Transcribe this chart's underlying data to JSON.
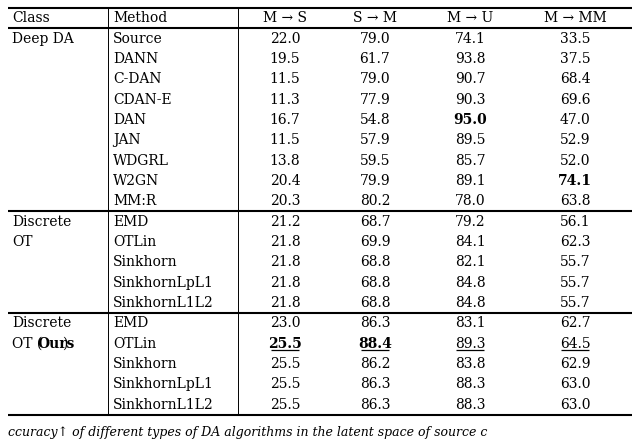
{
  "headers": [
    "Class",
    "Method",
    "M → S",
    "S → M",
    "M → U",
    "M → MM"
  ],
  "sections": [
    {
      "class_label_lines": [
        "Deep DA"
      ],
      "class_bold": [
        false
      ],
      "rows": [
        {
          "method": "Source",
          "vals": [
            "22.0",
            "79.0",
            "74.1",
            "33.5"
          ],
          "bold": [
            false,
            false,
            false,
            false
          ],
          "underline": [
            false,
            false,
            false,
            false
          ]
        },
        {
          "method": "DANN",
          "vals": [
            "19.5",
            "61.7",
            "93.8",
            "37.5"
          ],
          "bold": [
            false,
            false,
            false,
            false
          ],
          "underline": [
            false,
            false,
            false,
            false
          ]
        },
        {
          "method": "C-DAN",
          "vals": [
            "11.5",
            "79.0",
            "90.7",
            "68.4"
          ],
          "bold": [
            false,
            false,
            false,
            false
          ],
          "underline": [
            false,
            false,
            false,
            false
          ]
        },
        {
          "method": "CDAN-E",
          "vals": [
            "11.3",
            "77.9",
            "90.3",
            "69.6"
          ],
          "bold": [
            false,
            false,
            false,
            false
          ],
          "underline": [
            false,
            false,
            false,
            false
          ]
        },
        {
          "method": "DAN",
          "vals": [
            "16.7",
            "54.8",
            "95.0",
            "47.0"
          ],
          "bold": [
            false,
            false,
            true,
            false
          ],
          "underline": [
            false,
            false,
            false,
            false
          ]
        },
        {
          "method": "JAN",
          "vals": [
            "11.5",
            "57.9",
            "89.5",
            "52.9"
          ],
          "bold": [
            false,
            false,
            false,
            false
          ],
          "underline": [
            false,
            false,
            false,
            false
          ]
        },
        {
          "method": "WDGRL",
          "vals": [
            "13.8",
            "59.5",
            "85.7",
            "52.0"
          ],
          "bold": [
            false,
            false,
            false,
            false
          ],
          "underline": [
            false,
            false,
            false,
            false
          ]
        },
        {
          "method": "W2GN",
          "vals": [
            "20.4",
            "79.9",
            "89.1",
            "74.1"
          ],
          "bold": [
            false,
            false,
            false,
            true
          ],
          "underline": [
            false,
            false,
            false,
            false
          ]
        },
        {
          "method": "MM:R",
          "vals": [
            "20.3",
            "80.2",
            "78.0",
            "63.8"
          ],
          "bold": [
            false,
            false,
            false,
            false
          ],
          "underline": [
            false,
            false,
            false,
            false
          ]
        }
      ],
      "class_row": 0
    },
    {
      "class_label_lines": [
        "Discrete",
        "OT"
      ],
      "class_bold": [
        false,
        false
      ],
      "rows": [
        {
          "method": "EMD",
          "vals": [
            "21.2",
            "68.7",
            "79.2",
            "56.1"
          ],
          "bold": [
            false,
            false,
            false,
            false
          ],
          "underline": [
            false,
            false,
            false,
            false
          ]
        },
        {
          "method": "OTLin",
          "vals": [
            "21.8",
            "69.9",
            "84.1",
            "62.3"
          ],
          "bold": [
            false,
            false,
            false,
            false
          ],
          "underline": [
            false,
            false,
            false,
            false
          ]
        },
        {
          "method": "Sinkhorn",
          "vals": [
            "21.8",
            "68.8",
            "82.1",
            "55.7"
          ],
          "bold": [
            false,
            false,
            false,
            false
          ],
          "underline": [
            false,
            false,
            false,
            false
          ]
        },
        {
          "method": "SinkhornLpL1",
          "vals": [
            "21.8",
            "68.8",
            "84.8",
            "55.7"
          ],
          "bold": [
            false,
            false,
            false,
            false
          ],
          "underline": [
            false,
            false,
            false,
            false
          ]
        },
        {
          "method": "SinkhornL1L2",
          "vals": [
            "21.8",
            "68.8",
            "84.8",
            "55.7"
          ],
          "bold": [
            false,
            false,
            false,
            false
          ],
          "underline": [
            false,
            false,
            false,
            false
          ]
        }
      ],
      "class_row": 0
    },
    {
      "class_label_lines": [
        "Discrete",
        "OT (Ours)"
      ],
      "class_bold": [
        false,
        false
      ],
      "class_line2_parts": [
        [
          "OT (",
          false
        ],
        [
          "Ours",
          true
        ],
        [
          ")",
          false
        ]
      ],
      "rows": [
        {
          "method": "EMD",
          "vals": [
            "23.0",
            "86.3",
            "83.1",
            "62.7"
          ],
          "bold": [
            false,
            false,
            false,
            false
          ],
          "underline": [
            false,
            false,
            false,
            false
          ]
        },
        {
          "method": "OTLin",
          "vals": [
            "25.5",
            "88.4",
            "89.3",
            "64.5"
          ],
          "bold": [
            true,
            true,
            false,
            false
          ],
          "underline": [
            true,
            true,
            true,
            true
          ]
        },
        {
          "method": "Sinkhorn",
          "vals": [
            "25.5",
            "86.2",
            "83.8",
            "62.9"
          ],
          "bold": [
            false,
            false,
            false,
            false
          ],
          "underline": [
            false,
            false,
            false,
            false
          ]
        },
        {
          "method": "SinkhornLpL1",
          "vals": [
            "25.5",
            "86.3",
            "88.3",
            "63.0"
          ],
          "bold": [
            false,
            false,
            false,
            false
          ],
          "underline": [
            false,
            false,
            false,
            false
          ]
        },
        {
          "method": "SinkhornL1L2",
          "vals": [
            "25.5",
            "86.3",
            "88.3",
            "63.0"
          ],
          "bold": [
            false,
            false,
            false,
            false
          ],
          "underline": [
            false,
            false,
            false,
            false
          ]
        }
      ],
      "class_row": 0
    }
  ],
  "caption": "ccuracy↑ of different types of DA algorithms in the latent space of source c",
  "bg_color": "#ffffff",
  "font_size": 10.0,
  "header_font_size": 10.0,
  "caption_font_size": 9.0
}
